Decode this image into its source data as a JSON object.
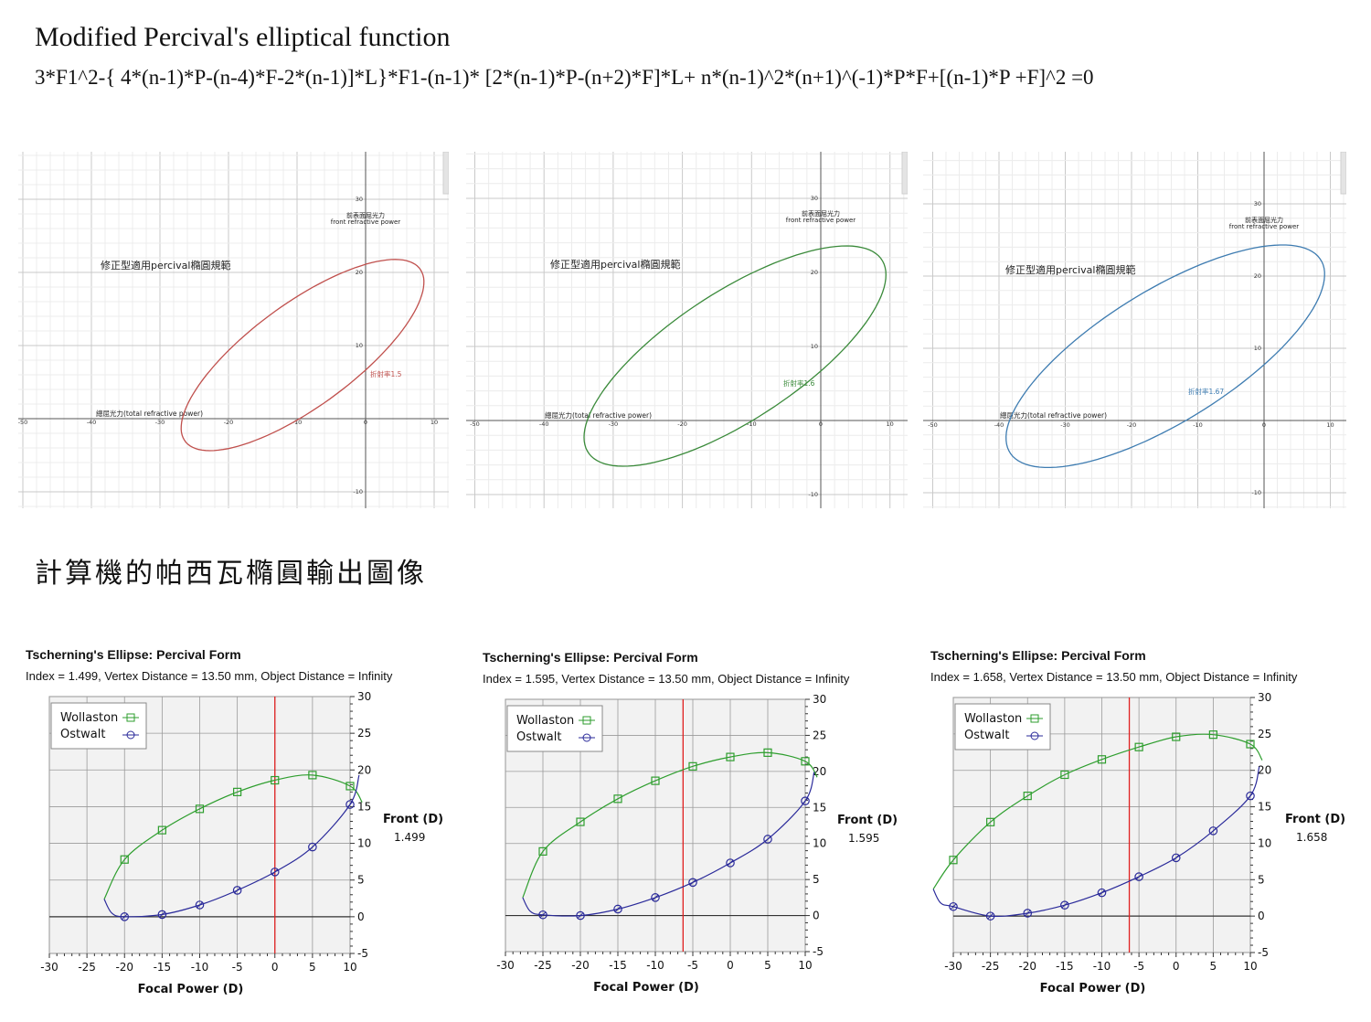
{
  "header": {
    "title": "Modified Percival's elliptical function",
    "formula": "3*F1^2-{ 4*(n-1)*P-(n-4)*F-2*(n-1)]*L}*F1-(n-1)* [2*(n-1)*P-(n+2)*F]*L+ n*(n-1)^2*(n+1)^(-1)*P*F+[(n-1)*P +F]^2 =0"
  },
  "section_title": "計算機的帕西瓦橢圓輸出圖像",
  "graph_panels": [
    {
      "caption": "修正型適用percival橢圓規範",
      "y_axis_label_zh": "前表面屈光力",
      "y_axis_label_en": "front refractive power",
      "x_axis_label": "總屈光力(total refractive power)",
      "ellipse_label": "折射率1.5",
      "color": "#c0504d",
      "x_ticks": [
        "-50",
        "-40",
        "-30",
        "-20",
        "-10",
        "0",
        "10"
      ],
      "y_ticks": [
        "30",
        "20",
        "10",
        "-10"
      ],
      "ellipse": {
        "cx": -9.2,
        "cy": 8.7,
        "rx": 20.8,
        "ry": 7.2,
        "angle_deg": 34
      }
    },
    {
      "caption": "修正型適用percival橢圓規範",
      "y_axis_label_zh": "前表面屈光力",
      "y_axis_label_en": "front refractive power",
      "x_axis_label": "總屈光力(total refractive power)",
      "ellipse_label": "折射率1.6",
      "color": "#3a8a3a",
      "x_ticks": [
        "-50",
        "-40",
        "-30",
        "-20",
        "-10",
        "0",
        "10"
      ],
      "y_ticks": [
        "30",
        "20",
        "10",
        "-10"
      ],
      "ellipse": {
        "cx": -12.4,
        "cy": 8.7,
        "rx": 24.9,
        "ry": 8.8,
        "angle_deg": 31
      }
    },
    {
      "caption": "修正型適用percival橢圓規範",
      "y_axis_label_zh": "前表面屈光力",
      "y_axis_label_en": "front refractive power",
      "x_axis_label": "總屈光力(total refractive power)",
      "ellipse_label": "折射率1.67",
      "color": "#3e7cb1",
      "x_ticks": [
        "-50",
        "-40",
        "-30",
        "-20",
        "-10",
        "0",
        "10"
      ],
      "y_ticks": [
        "30",
        "20",
        "10",
        "-10"
      ],
      "ellipse": {
        "cx": -14.9,
        "cy": 8.9,
        "rx": 27.0,
        "ry": 9.3,
        "angle_deg": 29
      }
    }
  ],
  "tscherning_panels": [
    {
      "title": "Tscherning's Ellipse: Percival Form",
      "subtitle": "Index = 1.499, Vertex Distance = 13.50 mm, Object Distance = Infinity",
      "legend": [
        "Wollaston",
        "Ostwalt"
      ],
      "side_label": "Front (D)",
      "side_value": "1.499",
      "x_axis_title": "Focal Power (D)",
      "x_ticks": [
        "-30",
        "-25",
        "-20",
        "-15",
        "-10",
        "-5",
        "0",
        "5",
        "10"
      ],
      "y_ticks": [
        "30",
        "25",
        "20",
        "15",
        "10",
        "5",
        "0",
        "-5"
      ],
      "red_line_x": 0
    },
    {
      "title": "Tscherning's Ellipse: Percival Form",
      "subtitle": "Index = 1.595, Vertex Distance = 13.50 mm, Object Distance = Infinity",
      "legend": [
        "Wollaston",
        "Ostwalt"
      ],
      "side_label": "Front (D)",
      "side_value": "1.595",
      "x_axis_title": "Focal Power (D)",
      "x_ticks": [
        "-30",
        "-25",
        "-20",
        "-15",
        "-10",
        "-5",
        "0",
        "5",
        "10"
      ],
      "y_ticks": [
        "30",
        "25",
        "20",
        "15",
        "10",
        "5",
        "0",
        "-5"
      ],
      "red_line_x": -6.3
    },
    {
      "title": "Tscherning's Ellipse: Percival Form",
      "subtitle": "Index = 1.658, Vertex Distance = 13.50 mm, Object Distance = Infinity",
      "legend": [
        "Wollaston",
        "Ostwalt"
      ],
      "side_label": "Front (D)",
      "side_value": "1.658",
      "x_axis_title": "Focal Power (D)",
      "x_ticks": [
        "-30",
        "-25",
        "-20",
        "-15",
        "-10",
        "-5",
        "0",
        "5",
        "10"
      ],
      "y_ticks": [
        "30",
        "25",
        "20",
        "15",
        "10",
        "5",
        "0",
        "-5"
      ],
      "red_line_x": -6.3
    }
  ],
  "chart_data": [
    {
      "type": "line",
      "title": "",
      "xlabel": "總屈光力(total refractive power)",
      "ylabel": "前表面屈光力 front refractive power",
      "annotation": "修正型適用percival橢圓規範",
      "series": [
        {
          "name": "折射率1.5",
          "shape": "ellipse",
          "center": [
            -9.2,
            8.7
          ],
          "semi_axes": [
            20.8,
            7.2
          ],
          "rotation_deg": 34
        }
      ],
      "xlim": [
        -51,
        13
      ],
      "ylim": [
        -12,
        36
      ],
      "grid": true
    },
    {
      "type": "line",
      "title": "",
      "xlabel": "總屈光力(total refractive power)",
      "ylabel": "前表面屈光力 front refractive power",
      "annotation": "修正型適用percival橢圓規範",
      "series": [
        {
          "name": "折射率1.6",
          "shape": "ellipse",
          "center": [
            -12.4,
            8.7
          ],
          "semi_axes": [
            24.9,
            8.8
          ],
          "rotation_deg": 31
        }
      ],
      "xlim": [
        -52,
        13
      ],
      "ylim": [
        -12,
        36
      ],
      "grid": true
    },
    {
      "type": "line",
      "title": "",
      "xlabel": "總屈光力(total refractive power)",
      "ylabel": "前表面屈光力 front refractive power",
      "annotation": "修正型適用percival橢圓規範",
      "series": [
        {
          "name": "折射率1.67",
          "shape": "ellipse",
          "center": [
            -14.9,
            8.9
          ],
          "semi_axes": [
            27.0,
            9.3
          ],
          "rotation_deg": 29
        }
      ],
      "xlim": [
        -52,
        12
      ],
      "ylim": [
        -12,
        36
      ],
      "grid": true
    },
    {
      "type": "line",
      "title": "Tscherning's Ellipse: Percival Form",
      "subtitle": "Index = 1.499, Vertex Distance = 13.50 mm, Object Distance = Infinity",
      "xlabel": "Focal Power (D)",
      "ylabel": "Front (D)",
      "xlim": [
        -30,
        10
      ],
      "ylim": [
        -5,
        30
      ],
      "grid": true,
      "legend": "top-left",
      "x": [
        -20,
        -15,
        -10,
        -5,
        0,
        5,
        10
      ],
      "series": [
        {
          "name": "Wollaston",
          "values": [
            7.8,
            11.8,
            14.7,
            17.0,
            18.6,
            19.3,
            17.8
          ]
        },
        {
          "name": "Ostwalt",
          "values": [
            0.0,
            0.3,
            1.6,
            3.6,
            6.1,
            9.5,
            15.3
          ]
        }
      ]
    },
    {
      "type": "line",
      "title": "Tscherning's Ellipse: Percival Form",
      "subtitle": "Index = 1.595, Vertex Distance = 13.50 mm, Object Distance = Infinity",
      "xlabel": "Focal Power (D)",
      "ylabel": "Front (D)",
      "xlim": [
        -30,
        10
      ],
      "ylim": [
        -5,
        30
      ],
      "grid": true,
      "legend": "top-left",
      "x": [
        -25,
        -20,
        -15,
        -10,
        -5,
        0,
        5,
        10
      ],
      "series": [
        {
          "name": "Wollaston",
          "values": [
            8.9,
            13.0,
            16.2,
            18.7,
            20.7,
            22.0,
            22.6,
            21.4
          ]
        },
        {
          "name": "Ostwalt",
          "values": [
            0.1,
            0.0,
            0.9,
            2.5,
            4.6,
            7.3,
            10.6,
            15.9
          ]
        }
      ]
    },
    {
      "type": "line",
      "title": "Tscherning's Ellipse: Percival Form",
      "subtitle": "Index = 1.658, Vertex Distance = 13.50 mm, Object Distance = Infinity",
      "xlabel": "Focal Power (D)",
      "ylabel": "Front (D)",
      "xlim": [
        -30,
        10
      ],
      "ylim": [
        -5,
        30
      ],
      "grid": true,
      "legend": "top-left",
      "x": [
        -30,
        -25,
        -20,
        -15,
        -10,
        -5,
        0,
        5,
        10
      ],
      "series": [
        {
          "name": "Wollaston",
          "values": [
            7.7,
            12.9,
            16.5,
            19.4,
            21.5,
            23.2,
            24.6,
            24.9,
            23.6
          ]
        },
        {
          "name": "Ostwalt",
          "values": [
            1.3,
            0.0,
            0.4,
            1.5,
            3.2,
            5.4,
            8.0,
            11.7,
            16.5
          ]
        }
      ]
    }
  ]
}
